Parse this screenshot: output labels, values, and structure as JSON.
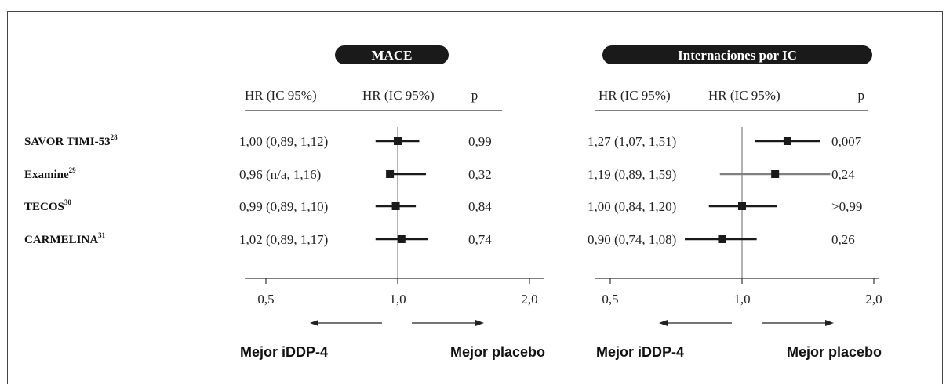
{
  "chart_data": [
    {
      "type": "forest",
      "title": "MACE",
      "headers": [
        "HR (IC 95%)",
        "HR (IC 95%)",
        "p"
      ],
      "studies": [
        {
          "name": "SAVOR TIMI-53",
          "ref": "28",
          "hr_text": "1,00 (0,89, 1,12)",
          "hr": 1.0,
          "lo": 0.89,
          "hi": 1.12,
          "p": "0,99"
        },
        {
          "name": "Examine",
          "ref": "29",
          "hr_text": "0,96 (n/a, 1,16)",
          "hr": 0.96,
          "lo": 0.96,
          "hi": 1.16,
          "p": "0,32"
        },
        {
          "name": "TECOS",
          "ref": "30",
          "hr_text": "0,99 (0,89, 1,10)",
          "hr": 0.99,
          "lo": 0.89,
          "hi": 1.1,
          "p": "0,84"
        },
        {
          "name": "CARMELINA",
          "ref": "31",
          "hr_text": "1,02 (0,89, 1,17)",
          "hr": 1.02,
          "lo": 0.89,
          "hi": 1.17,
          "p": "0,74"
        }
      ],
      "x_scale": "log",
      "xticks": [
        0.5,
        1.0,
        2.0
      ],
      "xtick_labels": [
        "0,5",
        "1,0",
        "2,0"
      ],
      "reference_line": 1.0,
      "left_label": "Mejor iDDP-4",
      "right_label": "Mejor placebo"
    },
    {
      "type": "forest",
      "title": "Internaciones por IC",
      "headers": [
        "HR (IC 95%)",
        "HR (IC 95%)",
        "p"
      ],
      "studies": [
        {
          "name": "SAVOR TIMI-53",
          "ref": "28",
          "hr_text": "1,27 (1,07, 1,51)",
          "hr": 1.27,
          "lo": 1.07,
          "hi": 1.51,
          "p": "0,007"
        },
        {
          "name": "Examine",
          "ref": "29",
          "hr_text": "1,19 (0,89, 1,59)",
          "hr": 1.19,
          "lo": 0.89,
          "hi": 1.59,
          "p": "0,24"
        },
        {
          "name": "TECOS",
          "ref": "30",
          "hr_text": "1,00 (0,84, 1,20)",
          "hr": 1.0,
          "lo": 0.84,
          "hi": 1.2,
          "p": ">0,99"
        },
        {
          "name": "CARMELINA",
          "ref": "31",
          "hr_text": "0,90 (0,74, 1,08)",
          "hr": 0.9,
          "lo": 0.74,
          "hi": 1.08,
          "p": "0,26"
        }
      ],
      "x_scale": "log",
      "xticks": [
        0.5,
        1.0,
        2.0
      ],
      "xtick_labels": [
        "0,5",
        "1,0",
        "2,0"
      ],
      "reference_line": 1.0,
      "left_label": "Mejor iDDP-4",
      "right_label": "Mejor placebo"
    }
  ],
  "colors": {
    "pill": "#1a1a1a",
    "marker": "#1a1a1a",
    "ci_line": "#1a1a1a",
    "ci_line_grey": "#808080",
    "reference_line": "#a0a0a0",
    "text": "#222222"
  }
}
